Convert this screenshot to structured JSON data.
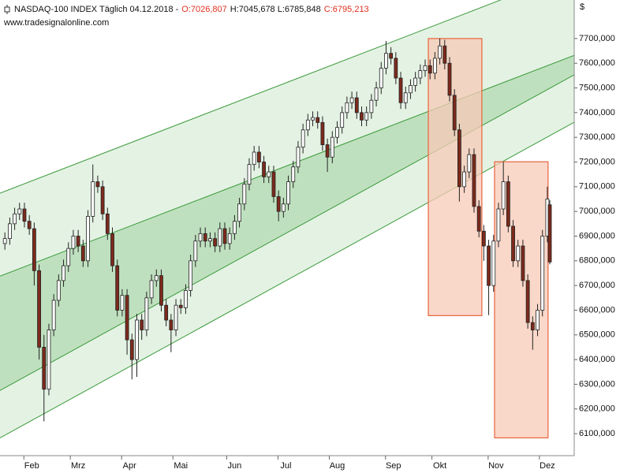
{
  "chart_data": {
    "type": "candlestick",
    "title": "NASDAQ-100 INDEX Täglich  04.12.2018 -",
    "ohlc_labels": [
      "O:7026,807",
      "H:7045,678 L:6785,848",
      "C:6795,213"
    ],
    "source": "www.tradesignalonline.com",
    "currency": "$",
    "up_color": "#ffffff",
    "down_color": "#7d2a1c",
    "outline_color": "#222222",
    "x": [
      0,
      2,
      4,
      6,
      8,
      10,
      12,
      14,
      16,
      18,
      20,
      22,
      24,
      26,
      28,
      30,
      32,
      34,
      36,
      38,
      40,
      42,
      44,
      46,
      48,
      50,
      52,
      54,
      56,
      58,
      60,
      62,
      64,
      66,
      68,
      70,
      72,
      74,
      76,
      78,
      80,
      82,
      84,
      86,
      88,
      90,
      92,
      94,
      96,
      98,
      100,
      102,
      104,
      106,
      108,
      110,
      112,
      114,
      116,
      118,
      120,
      122,
      124,
      126,
      128,
      130,
      132,
      134,
      136,
      138,
      140,
      142,
      144,
      146,
      148,
      150,
      152,
      154,
      156,
      158,
      160,
      162,
      164,
      166,
      168,
      170,
      172,
      174,
      176,
      178,
      180,
      182,
      184,
      186,
      188,
      190,
      192,
      194,
      196,
      198,
      200,
      202,
      204,
      206,
      208,
      210,
      212,
      214,
      216,
      218,
      220,
      222,
      223
    ],
    "open": [
      6870,
      6890,
      6950,
      6990,
      7010,
      6960,
      6930,
      6760,
      6450,
      6280,
      6520,
      6640,
      6720,
      6780,
      6850,
      6900,
      6860,
      6800,
      6980,
      7120,
      7100,
      6990,
      6910,
      6780,
      6600,
      6660,
      6480,
      6400,
      6560,
      6520,
      6650,
      6720,
      6740,
      6620,
      6560,
      6520,
      6620,
      6610,
      6680,
      6800,
      6880,
      6910,
      6880,
      6890,
      6860,
      6930,
      6870,
      6910,
      6960,
      7030,
      7110,
      7190,
      7240,
      7200,
      7140,
      7160,
      7060,
      7000,
      7030,
      7120,
      7180,
      7260,
      7330,
      7370,
      7380,
      7360,
      7270,
      7220,
      7300,
      7340,
      7400,
      7440,
      7460,
      7400,
      7370,
      7400,
      7450,
      7500,
      7580,
      7640,
      7620,
      7540,
      7440,
      7480,
      7510,
      7540,
      7570,
      7590,
      7560,
      7620,
      7670,
      7600,
      7470,
      7330,
      7100,
      7160,
      7230,
      7020,
      6920,
      6860,
      6700,
      6880,
      7010,
      7120,
      6940,
      6800,
      6860,
      6720,
      6550,
      6520,
      6600,
      6900,
      7026.807
    ],
    "high": [
      6915,
      6975,
      7015,
      7035,
      7035,
      6985,
      6955,
      6785,
      6500,
      6545,
      6665,
      6745,
      6805,
      6875,
      6925,
      6925,
      6885,
      7005,
      7190,
      7145,
      7125,
      7015,
      6935,
      6805,
      6685,
      6685,
      6505,
      6585,
      6585,
      6675,
      6745,
      6765,
      6765,
      6645,
      6585,
      6645,
      6645,
      6705,
      6825,
      6905,
      6935,
      6935,
      6915,
      6915,
      6955,
      6955,
      6935,
      6985,
      7055,
      7135,
      7215,
      7265,
      7265,
      7225,
      7185,
      7185,
      7085,
      7055,
      7145,
      7205,
      7285,
      7355,
      7395,
      7405,
      7405,
      7385,
      7295,
      7325,
      7365,
      7425,
      7465,
      7485,
      7485,
      7425,
      7425,
      7475,
      7525,
      7605,
      7690,
      7665,
      7645,
      7565,
      7505,
      7535,
      7565,
      7595,
      7615,
      7615,
      7645,
      7700,
      7695,
      7625,
      7495,
      7355,
      7185,
      7255,
      7255,
      7045,
      6945,
      6885,
      6905,
      7035,
      7200,
      7145,
      6965,
      6885,
      6885,
      6745,
      6575,
      6625,
      6925,
      7100,
      7045.678
    ],
    "low": [
      6845,
      6865,
      6925,
      6965,
      6935,
      6905,
      6700,
      6400,
      6150,
      6255,
      6495,
      6615,
      6695,
      6755,
      6825,
      6835,
      6775,
      6775,
      6955,
      7075,
      6965,
      6885,
      6755,
      6575,
      6575,
      6420,
      6320,
      6330,
      6480,
      6495,
      6625,
      6695,
      6595,
      6535,
      6430,
      6495,
      6585,
      6585,
      6655,
      6775,
      6855,
      6855,
      6855,
      6835,
      6835,
      6845,
      6845,
      6885,
      6935,
      7005,
      7085,
      7165,
      7175,
      7115,
      7115,
      7035,
      6960,
      6975,
      7005,
      7095,
      7155,
      7235,
      7305,
      7345,
      7335,
      7245,
      7160,
      7195,
      7275,
      7315,
      7375,
      7415,
      7375,
      7345,
      7345,
      7375,
      7425,
      7475,
      7555,
      7595,
      7515,
      7415,
      7415,
      7455,
      7485,
      7515,
      7545,
      7535,
      7535,
      7595,
      7575,
      7445,
      7305,
      7040,
      7075,
      7135,
      6995,
      6895,
      6800,
      6580,
      6675,
      6855,
      6985,
      6915,
      6775,
      6775,
      6695,
      6525,
      6440,
      6495,
      6575,
      6875,
      6785.848
    ],
    "close": [
      6890,
      6950,
      6990,
      7010,
      6960,
      6930,
      6760,
      6450,
      6280,
      6520,
      6640,
      6720,
      6780,
      6850,
      6900,
      6860,
      6800,
      6980,
      7120,
      7100,
      6990,
      6910,
      6780,
      6600,
      6660,
      6480,
      6400,
      6560,
      6520,
      6650,
      6720,
      6740,
      6620,
      6560,
      6520,
      6620,
      6610,
      6680,
      6800,
      6880,
      6910,
      6880,
      6890,
      6860,
      6930,
      6870,
      6910,
      6960,
      7030,
      7110,
      7190,
      7240,
      7200,
      7140,
      7160,
      7060,
      7000,
      7030,
      7120,
      7180,
      7260,
      7330,
      7370,
      7380,
      7360,
      7270,
      7220,
      7300,
      7340,
      7400,
      7440,
      7460,
      7400,
      7370,
      7400,
      7450,
      7500,
      7580,
      7640,
      7620,
      7540,
      7440,
      7480,
      7510,
      7540,
      7570,
      7590,
      7560,
      7620,
      7670,
      7600,
      7470,
      7330,
      7100,
      7160,
      7230,
      7020,
      6920,
      6860,
      6700,
      6880,
      7010,
      7120,
      6940,
      6800,
      6860,
      6720,
      6550,
      6520,
      6600,
      6900,
      7050,
      6795.213
    ],
    "channels": [
      {
        "x": [
          -2,
          233
        ],
        "y": [
          7074,
          7971
        ]
      },
      {
        "x": [
          -2,
          233
        ],
        "y": [
          6738,
          7632
        ]
      },
      {
        "x": [
          -2,
          233
        ],
        "y": [
          6275,
          7553
        ]
      },
      {
        "x": [
          -2,
          233
        ],
        "y": [
          6083,
          7361
        ]
      }
    ],
    "channel_line_color": "#3a9a3a",
    "channel_outer_fill": "#e4f2e4",
    "channel_inner_fill": "#bfe0bf",
    "boxes": [
      {
        "x": [
          173.3,
          195.2
        ],
        "y": [
          6578,
          7700
        ]
      },
      {
        "x": [
          200.4,
          222.3
        ],
        "y": [
          6083,
          7201
        ]
      }
    ],
    "box_fill": "#f7c9b7",
    "box_stroke": "#e8643c",
    "xlim": [
      -2,
      233
    ],
    "xticks": [
      {
        "value": 11,
        "label": "Feb"
      },
      {
        "value": 30,
        "label": "Mrz"
      },
      {
        "value": 51,
        "label": "Apr"
      },
      {
        "value": 72,
        "label": "Mai"
      },
      {
        "value": 94,
        "label": "Jun"
      },
      {
        "value": 115,
        "label": "Jul"
      },
      {
        "value": 136,
        "label": "Aug"
      },
      {
        "value": 159,
        "label": "Sep"
      },
      {
        "value": 178,
        "label": "Okt"
      },
      {
        "value": 201,
        "label": "Nov"
      },
      {
        "value": 222,
        "label": "Dez"
      }
    ],
    "ylim": [
      6011,
      7856
    ],
    "yticks": [
      {
        "value": 6100,
        "label": "6100,000"
      },
      {
        "value": 6200,
        "label": "6200,000"
      },
      {
        "value": 6300,
        "label": "6300,000"
      },
      {
        "value": 6400,
        "label": "6400,000"
      },
      {
        "value": 6500,
        "label": "6500,000"
      },
      {
        "value": 6600,
        "label": "6600,000"
      },
      {
        "value": 6700,
        "label": "6700,000"
      },
      {
        "value": 6800,
        "label": "6800,000"
      },
      {
        "value": 6900,
        "label": "6900,000"
      },
      {
        "value": 7000,
        "label": "7000,000"
      },
      {
        "value": 7100,
        "label": "7100,000"
      },
      {
        "value": 7200,
        "label": "7200,000"
      },
      {
        "value": 7300,
        "label": "7300,000"
      },
      {
        "value": 7400,
        "label": "7400,000"
      },
      {
        "value": 7500,
        "label": "7500,000"
      },
      {
        "value": 7600,
        "label": "7600,000"
      },
      {
        "value": 7700,
        "label": "7700,000"
      }
    ],
    "grid": false
  }
}
